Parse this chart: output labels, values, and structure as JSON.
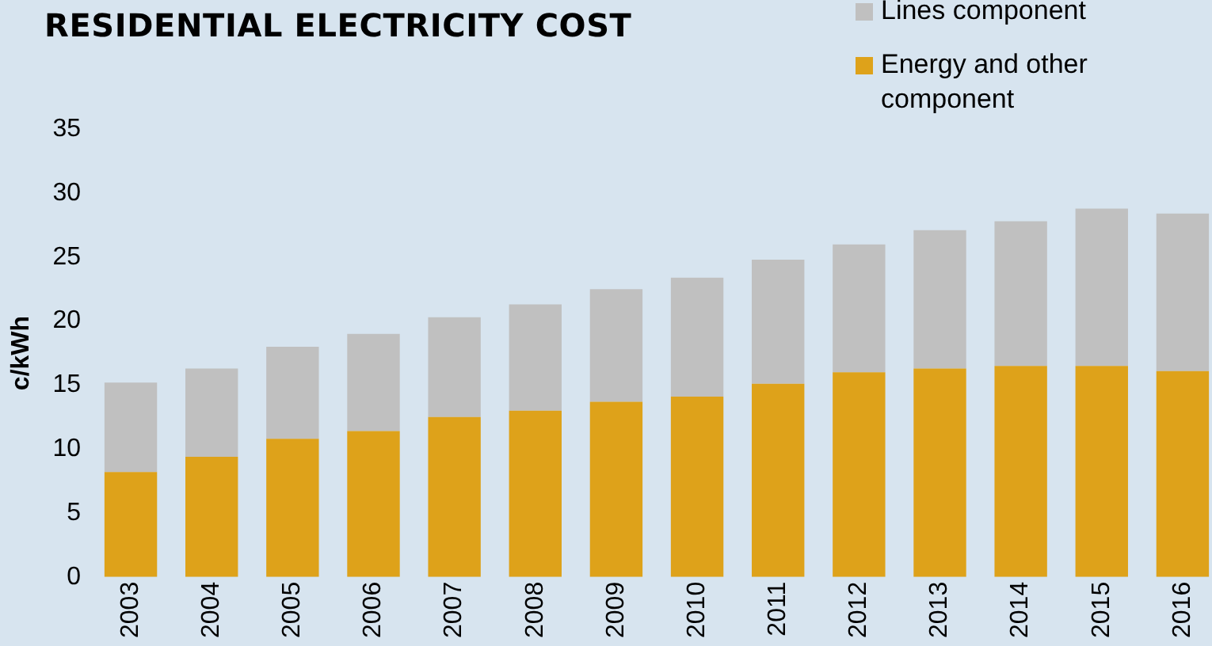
{
  "chart_data": {
    "type": "bar",
    "title": "RESIDENTIAL ELECTRICITY COST",
    "ylabel": "c/kWh",
    "categories": [
      "2003",
      "2004",
      "2005",
      "2006",
      "2007",
      "2008",
      "2009",
      "2010",
      "2011",
      "2012",
      "2013",
      "2014",
      "2015",
      "2016"
    ],
    "series": [
      {
        "name": "Energy and other component",
        "color": "#dea21a",
        "values": [
          8.2,
          9.4,
          10.8,
          11.4,
          12.5,
          13.0,
          13.7,
          14.1,
          15.1,
          16.0,
          16.3,
          16.5,
          16.5,
          16.1
        ]
      },
      {
        "name": "Lines component",
        "color": "#c0c0c0",
        "values": [
          7.0,
          6.9,
          7.2,
          7.6,
          7.8,
          8.3,
          8.8,
          9.3,
          9.7,
          10.0,
          10.8,
          11.3,
          12.3,
          12.3
        ]
      }
    ],
    "stacked": true,
    "ylim": [
      0,
      35
    ],
    "yticks": [
      0,
      5,
      10,
      15,
      20,
      25,
      30,
      35
    ],
    "grid": false,
    "legend": "top right"
  }
}
